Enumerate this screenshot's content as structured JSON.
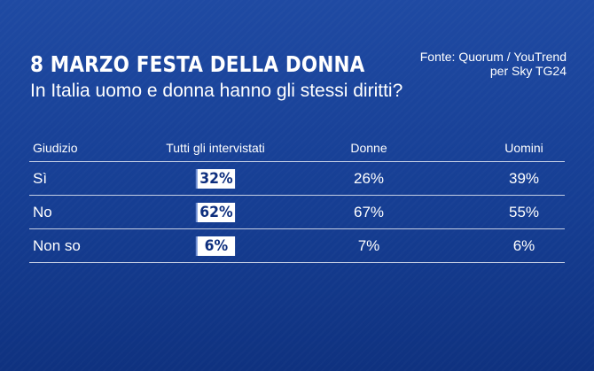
{
  "header": {
    "title": "8 MARZO FESTA DELLA DONNA",
    "question": "In Italia uomo e donna hanno gli stessi diritti?",
    "source_line1": "Fonte: Quorum / YouTrend",
    "source_line2": "per Sky TG24"
  },
  "colors": {
    "background": "#163e93",
    "badge_bg": "#ffffff",
    "badge_text": "#0e2f7e"
  },
  "chart_data": {
    "type": "table",
    "title": "8 MARZO FESTA DELLA DONNA",
    "subtitle": "In Italia uomo e donna hanno gli stessi diritti?",
    "columns": [
      "Giudizio",
      "Tutti gli intervistati",
      "Donne",
      "Uomini"
    ],
    "rows": [
      {
        "label": "Sì",
        "all": "32%",
        "donne": "26%",
        "uomini": "39%"
      },
      {
        "label": "No",
        "all": "62%",
        "donne": "67%",
        "uomini": "55%"
      },
      {
        "label": "Non so",
        "all": "6%",
        "donne": "7%",
        "uomini": "6%"
      }
    ],
    "series": [
      {
        "name": "Tutti gli intervistati",
        "values": [
          32,
          62,
          6
        ]
      },
      {
        "name": "Donne",
        "values": [
          26,
          67,
          7
        ]
      },
      {
        "name": "Uomini",
        "values": [
          39,
          55,
          6
        ]
      }
    ],
    "categories": [
      "Sì",
      "No",
      "Non so"
    ]
  }
}
